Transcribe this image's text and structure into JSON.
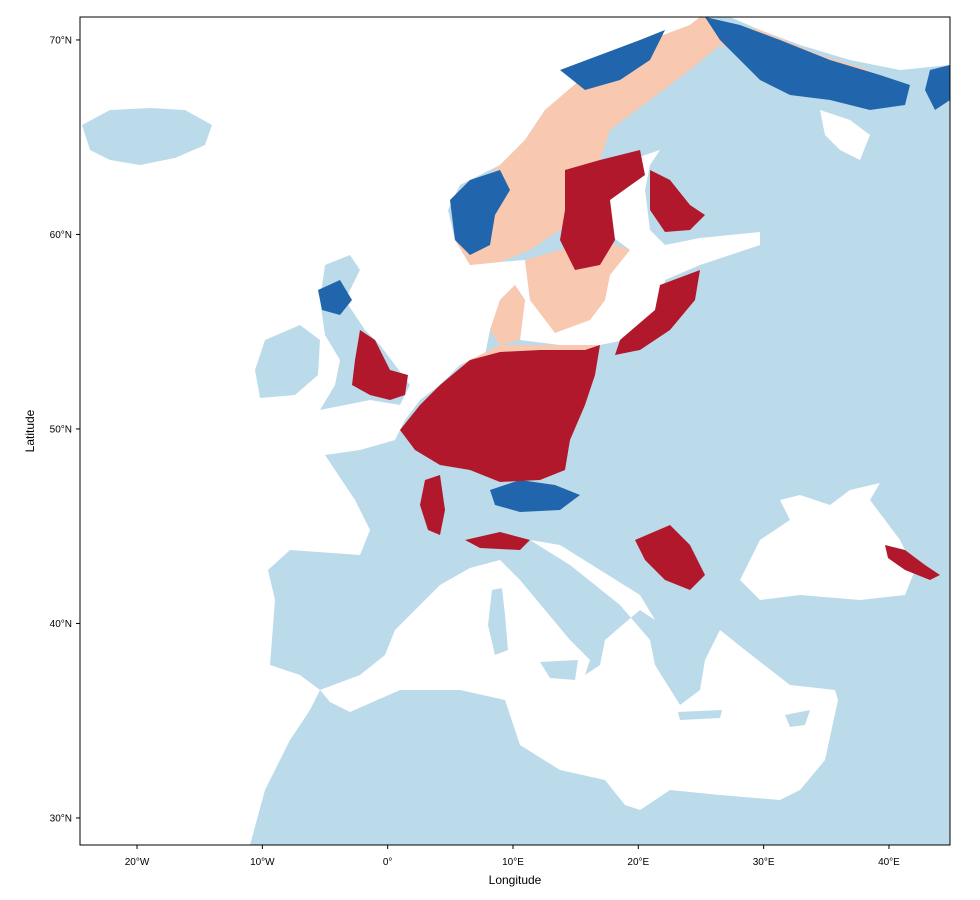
{
  "chart_data": {
    "type": "map",
    "xlabel": "Longitude",
    "ylabel": "Latitude",
    "xlim": [
      -24.55,
      44.87
    ],
    "ylim": [
      28.61,
      71.18
    ],
    "xticks": [
      {
        "value": -20,
        "label": "20°W"
      },
      {
        "value": -10,
        "label": "10°W"
      },
      {
        "value": 0,
        "label": "0°"
      },
      {
        "value": 10,
        "label": "10°E"
      },
      {
        "value": 20,
        "label": "20°E"
      },
      {
        "value": 30,
        "label": "30°E"
      },
      {
        "value": 40,
        "label": "40°E"
      }
    ],
    "yticks": [
      {
        "value": 30,
        "label": "30°N"
      },
      {
        "value": 40,
        "label": "40°N"
      },
      {
        "value": 50,
        "label": "50°N"
      },
      {
        "value": 60,
        "label": "60°N"
      },
      {
        "value": 70,
        "label": "70°N"
      }
    ]
  }
}
